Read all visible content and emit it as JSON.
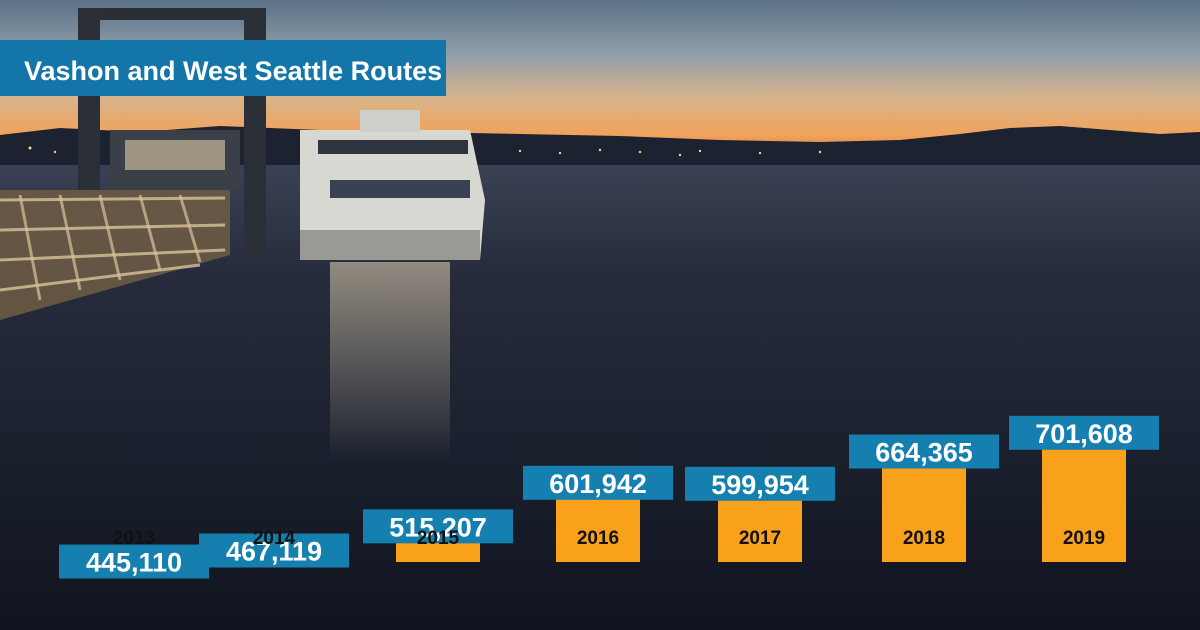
{
  "chart_data": {
    "type": "bar",
    "title": "Vashon and West Seattle Routes",
    "categories": [
      "2013",
      "2014",
      "2015",
      "2016",
      "2017",
      "2018",
      "2019"
    ],
    "values": [
      445110,
      467119,
      515207,
      601942,
      599954,
      664365,
      701608
    ],
    "value_labels": [
      "445,110",
      "467,119",
      "515,207",
      "601,942",
      "599,954",
      "664,365",
      "701,608"
    ],
    "xlabel": "",
    "ylabel": "",
    "grid": false,
    "legend": "none",
    "colors": {
      "bar": "#F9A11B",
      "value_label_bg": "#1580B0",
      "value_label_text": "#FFFFFF",
      "category_text": "#111111",
      "title_bg": "#1476A8",
      "title_text": "#FFFFFF"
    }
  },
  "background": {
    "description_icon": "ferry-dock-sunset-photo"
  }
}
